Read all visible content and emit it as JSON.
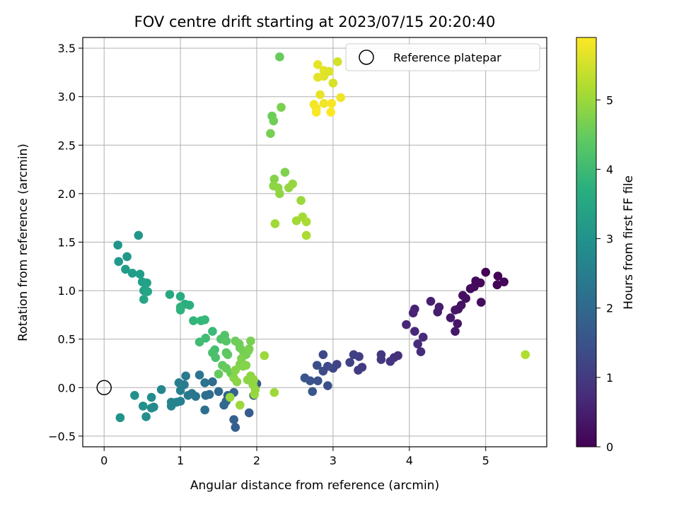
{
  "chart_data": {
    "type": "scatter",
    "title": "FOV centre drift starting at 2023/07/15 20:20:40",
    "xlabel": "Angular distance from reference (arcmin)",
    "ylabel": "Rotation from reference (arcmin)",
    "xlim": [
      -0.28,
      5.8
    ],
    "ylim": [
      -0.61,
      3.61
    ],
    "xticks": [
      "0",
      "1",
      "2",
      "3",
      "4",
      "5"
    ],
    "yticks": [
      "−0.5",
      "0.0",
      "0.5",
      "1.0",
      "1.5",
      "2.0",
      "2.5",
      "3.0",
      "3.5"
    ],
    "grid": true,
    "legend": {
      "position": "top-right",
      "label": "Reference platepar",
      "marker": "open-circle"
    },
    "reference_point": {
      "x": 0,
      "y": 0
    },
    "colorbar": {
      "label": "Hours from first FF file",
      "colormap": "viridis",
      "range": [
        0,
        5.9
      ],
      "ticks": [
        "0",
        "1",
        "2",
        "3",
        "4",
        "5"
      ]
    },
    "point_color_value": "hours",
    "points": [
      {
        "x": 5.0,
        "y": 1.19,
        "c": 0.0
      },
      {
        "x": 5.16,
        "y": 1.15,
        "c": 0.03
      },
      {
        "x": 5.24,
        "y": 1.09,
        "c": 0.05
      },
      {
        "x": 5.15,
        "y": 1.06,
        "c": 0.07
      },
      {
        "x": 4.93,
        "y": 1.08,
        "c": 0.1
      },
      {
        "x": 4.87,
        "y": 1.1,
        "c": 0.12
      },
      {
        "x": 4.85,
        "y": 1.04,
        "c": 0.15
      },
      {
        "x": 4.8,
        "y": 1.02,
        "c": 0.17
      },
      {
        "x": 4.94,
        "y": 0.88,
        "c": 0.2
      },
      {
        "x": 4.74,
        "y": 0.92,
        "c": 0.22
      },
      {
        "x": 4.7,
        "y": 0.95,
        "c": 0.25
      },
      {
        "x": 4.68,
        "y": 0.85,
        "c": 0.28
      },
      {
        "x": 4.64,
        "y": 0.81,
        "c": 0.3
      },
      {
        "x": 4.6,
        "y": 0.8,
        "c": 0.33
      },
      {
        "x": 4.63,
        "y": 0.66,
        "c": 0.35
      },
      {
        "x": 4.6,
        "y": 0.58,
        "c": 0.38
      },
      {
        "x": 4.54,
        "y": 0.72,
        "c": 0.4
      },
      {
        "x": 4.39,
        "y": 0.83,
        "c": 0.45
      },
      {
        "x": 4.37,
        "y": 0.78,
        "c": 0.48
      },
      {
        "x": 4.28,
        "y": 0.89,
        "c": 0.52
      },
      {
        "x": 4.07,
        "y": 0.81,
        "c": 0.55
      },
      {
        "x": 4.05,
        "y": 0.77,
        "c": 0.58
      },
      {
        "x": 3.96,
        "y": 0.65,
        "c": 0.62
      },
      {
        "x": 4.07,
        "y": 0.58,
        "c": 0.65
      },
      {
        "x": 4.18,
        "y": 0.52,
        "c": 0.7
      },
      {
        "x": 4.11,
        "y": 0.45,
        "c": 0.73
      },
      {
        "x": 4.15,
        "y": 0.37,
        "c": 0.76
      },
      {
        "x": 3.85,
        "y": 0.33,
        "c": 0.8
      },
      {
        "x": 3.8,
        "y": 0.31,
        "c": 0.84
      },
      {
        "x": 3.75,
        "y": 0.27,
        "c": 0.88
      },
      {
        "x": 3.63,
        "y": 0.34,
        "c": 0.92
      },
      {
        "x": 3.63,
        "y": 0.29,
        "c": 0.96
      },
      {
        "x": 3.38,
        "y": 0.21,
        "c": 1.0
      },
      {
        "x": 3.33,
        "y": 0.18,
        "c": 1.04
      },
      {
        "x": 3.34,
        "y": 0.32,
        "c": 1.08
      },
      {
        "x": 3.27,
        "y": 0.34,
        "c": 1.12
      },
      {
        "x": 3.22,
        "y": 0.26,
        "c": 1.16
      },
      {
        "x": 3.05,
        "y": 0.24,
        "c": 1.2
      },
      {
        "x": 3.0,
        "y": 0.2,
        "c": 1.24
      },
      {
        "x": 2.87,
        "y": 0.34,
        "c": 1.28
      },
      {
        "x": 2.93,
        "y": 0.22,
        "c": 1.32
      },
      {
        "x": 2.87,
        "y": 0.17,
        "c": 1.36
      },
      {
        "x": 2.79,
        "y": 0.23,
        "c": 1.4
      },
      {
        "x": 2.93,
        "y": 0.02,
        "c": 1.44
      },
      {
        "x": 2.8,
        "y": 0.07,
        "c": 1.48
      },
      {
        "x": 2.7,
        "y": 0.07,
        "c": 1.52
      },
      {
        "x": 2.63,
        "y": 0.1,
        "c": 1.56
      },
      {
        "x": 2.73,
        "y": -0.04,
        "c": 1.6
      },
      {
        "x": 2.0,
        "y": 0.04,
        "c": 1.66
      },
      {
        "x": 1.96,
        "y": -0.08,
        "c": 1.7
      },
      {
        "x": 1.9,
        "y": -0.26,
        "c": 1.74
      },
      {
        "x": 1.72,
        "y": -0.41,
        "c": 1.78
      },
      {
        "x": 1.7,
        "y": -0.33,
        "c": 1.82
      },
      {
        "x": 1.7,
        "y": -0.05,
        "c": 1.86
      },
      {
        "x": 1.62,
        "y": -0.08,
        "c": 1.9
      },
      {
        "x": 1.6,
        "y": -0.14,
        "c": 1.94
      },
      {
        "x": 1.57,
        "y": -0.18,
        "c": 1.98
      },
      {
        "x": 1.5,
        "y": -0.04,
        "c": 2.02
      },
      {
        "x": 1.42,
        "y": 0.06,
        "c": 2.06
      },
      {
        "x": 1.38,
        "y": -0.07,
        "c": 2.1
      },
      {
        "x": 1.33,
        "y": -0.08,
        "c": 2.14
      },
      {
        "x": 1.32,
        "y": -0.23,
        "c": 2.18
      },
      {
        "x": 1.32,
        "y": 0.05,
        "c": 2.22
      },
      {
        "x": 1.25,
        "y": 0.13,
        "c": 2.26
      },
      {
        "x": 1.2,
        "y": -0.09,
        "c": 2.3
      },
      {
        "x": 1.15,
        "y": -0.06,
        "c": 2.34
      },
      {
        "x": 1.1,
        "y": -0.08,
        "c": 2.38
      },
      {
        "x": 1.07,
        "y": 0.12,
        "c": 2.42
      },
      {
        "x": 1.05,
        "y": 0.03,
        "c": 2.46
      },
      {
        "x": 0.98,
        "y": 0.05,
        "c": 2.5
      },
      {
        "x": 1.0,
        "y": -0.03,
        "c": 2.54
      },
      {
        "x": 1.0,
        "y": -0.14,
        "c": 2.58
      },
      {
        "x": 0.95,
        "y": -0.15,
        "c": 2.62
      },
      {
        "x": 0.88,
        "y": -0.19,
        "c": 2.66
      },
      {
        "x": 0.88,
        "y": -0.15,
        "c": 2.7
      },
      {
        "x": 0.75,
        "y": -0.02,
        "c": 2.74
      },
      {
        "x": 0.65,
        "y": -0.2,
        "c": 2.78
      },
      {
        "x": 0.62,
        "y": -0.21,
        "c": 2.82
      },
      {
        "x": 0.62,
        "y": -0.1,
        "c": 2.86
      },
      {
        "x": 0.55,
        "y": -0.3,
        "c": 2.9
      },
      {
        "x": 0.51,
        "y": -0.19,
        "c": 2.94
      },
      {
        "x": 0.4,
        "y": -0.08,
        "c": 2.98
      },
      {
        "x": 0.21,
        "y": -0.31,
        "c": 3.02
      },
      {
        "x": 0.18,
        "y": 1.47,
        "c": 3.06
      },
      {
        "x": 0.45,
        "y": 1.57,
        "c": 3.1
      },
      {
        "x": 0.3,
        "y": 1.35,
        "c": 3.14
      },
      {
        "x": 0.19,
        "y": 1.3,
        "c": 3.18
      },
      {
        "x": 0.28,
        "y": 1.22,
        "c": 3.22
      },
      {
        "x": 0.37,
        "y": 1.18,
        "c": 3.26
      },
      {
        "x": 0.47,
        "y": 1.17,
        "c": 3.3
      },
      {
        "x": 0.5,
        "y": 1.09,
        "c": 3.34
      },
      {
        "x": 0.56,
        "y": 1.08,
        "c": 3.38
      },
      {
        "x": 0.52,
        "y": 1.0,
        "c": 3.42
      },
      {
        "x": 0.57,
        "y": 0.99,
        "c": 3.46
      },
      {
        "x": 0.52,
        "y": 0.91,
        "c": 3.5
      },
      {
        "x": 0.86,
        "y": 0.96,
        "c": 3.55
      },
      {
        "x": 1.0,
        "y": 0.94,
        "c": 3.6
      },
      {
        "x": 1.06,
        "y": 0.86,
        "c": 3.65
      },
      {
        "x": 1.12,
        "y": 0.85,
        "c": 3.7
      },
      {
        "x": 1.0,
        "y": 0.83,
        "c": 3.75
      },
      {
        "x": 1.0,
        "y": 0.8,
        "c": 3.8
      },
      {
        "x": 1.17,
        "y": 0.69,
        "c": 3.85
      },
      {
        "x": 1.27,
        "y": 0.69,
        "c": 3.9
      },
      {
        "x": 1.32,
        "y": 0.7,
        "c": 3.95
      },
      {
        "x": 1.42,
        "y": 0.58,
        "c": 4.0
      },
      {
        "x": 1.33,
        "y": 0.51,
        "c": 4.04
      },
      {
        "x": 1.25,
        "y": 0.47,
        "c": 4.08
      },
      {
        "x": 1.45,
        "y": 0.39,
        "c": 4.12
      },
      {
        "x": 1.42,
        "y": 0.36,
        "c": 4.16
      },
      {
        "x": 1.46,
        "y": 0.31,
        "c": 4.2
      },
      {
        "x": 1.53,
        "y": 0.5,
        "c": 4.24
      },
      {
        "x": 1.58,
        "y": 0.54,
        "c": 4.28
      },
      {
        "x": 1.6,
        "y": 0.48,
        "c": 4.32
      },
      {
        "x": 1.6,
        "y": 0.36,
        "c": 4.36
      },
      {
        "x": 1.62,
        "y": 0.34,
        "c": 4.4
      },
      {
        "x": 1.55,
        "y": 0.23,
        "c": 4.44
      },
      {
        "x": 1.5,
        "y": 0.14,
        "c": 4.48
      },
      {
        "x": 1.6,
        "y": 0.2,
        "c": 4.5
      },
      {
        "x": 1.66,
        "y": 0.15,
        "c": 4.52
      },
      {
        "x": 1.72,
        "y": 0.48,
        "c": 4.55
      },
      {
        "x": 1.77,
        "y": 0.45,
        "c": 4.58
      },
      {
        "x": 1.78,
        "y": 0.41,
        "c": 4.6
      },
      {
        "x": 1.82,
        "y": 0.38,
        "c": 4.62
      },
      {
        "x": 1.86,
        "y": 0.34,
        "c": 4.64
      },
      {
        "x": 1.89,
        "y": 0.38,
        "c": 4.66
      },
      {
        "x": 1.92,
        "y": 0.48,
        "c": 4.68
      },
      {
        "x": 1.9,
        "y": 0.4,
        "c": 4.7
      },
      {
        "x": 1.8,
        "y": 0.3,
        "c": 4.72
      },
      {
        "x": 1.78,
        "y": 0.24,
        "c": 4.74
      },
      {
        "x": 1.82,
        "y": 0.22,
        "c": 4.76
      },
      {
        "x": 1.86,
        "y": 0.23,
        "c": 4.78
      },
      {
        "x": 1.72,
        "y": 0.18,
        "c": 4.8
      },
      {
        "x": 1.7,
        "y": 0.1,
        "c": 4.82
      },
      {
        "x": 1.74,
        "y": 0.06,
        "c": 4.84
      },
      {
        "x": 1.88,
        "y": 0.08,
        "c": 4.86
      },
      {
        "x": 1.92,
        "y": 0.12,
        "c": 4.88
      },
      {
        "x": 1.96,
        "y": 0.08,
        "c": 4.9
      },
      {
        "x": 1.95,
        "y": 0.03,
        "c": 4.92
      },
      {
        "x": 1.98,
        "y": -0.02,
        "c": 4.94
      },
      {
        "x": 1.97,
        "y": -0.07,
        "c": 4.96
      },
      {
        "x": 1.65,
        "y": -0.1,
        "c": 4.98
      },
      {
        "x": 1.78,
        "y": -0.18,
        "c": 5.0
      },
      {
        "x": 2.1,
        "y": 0.33,
        "c": 5.02
      },
      {
        "x": 2.23,
        "y": -0.05,
        "c": 5.04
      },
      {
        "x": 2.2,
        "y": 2.8,
        "c": 4.55
      },
      {
        "x": 2.22,
        "y": 2.75,
        "c": 4.6
      },
      {
        "x": 2.18,
        "y": 2.62,
        "c": 4.65
      },
      {
        "x": 2.32,
        "y": 2.89,
        "c": 4.7
      },
      {
        "x": 2.3,
        "y": 3.41,
        "c": 4.5
      },
      {
        "x": 2.37,
        "y": 2.22,
        "c": 4.75
      },
      {
        "x": 2.23,
        "y": 2.15,
        "c": 4.8
      },
      {
        "x": 2.22,
        "y": 2.08,
        "c": 4.85
      },
      {
        "x": 2.28,
        "y": 2.06,
        "c": 4.88
      },
      {
        "x": 2.3,
        "y": 2.0,
        "c": 4.9
      },
      {
        "x": 2.42,
        "y": 2.06,
        "c": 4.93
      },
      {
        "x": 2.47,
        "y": 2.1,
        "c": 4.96
      },
      {
        "x": 2.58,
        "y": 1.93,
        "c": 5.0
      },
      {
        "x": 2.24,
        "y": 1.69,
        "c": 5.05
      },
      {
        "x": 2.52,
        "y": 1.72,
        "c": 5.08
      },
      {
        "x": 2.6,
        "y": 1.76,
        "c": 5.1
      },
      {
        "x": 2.65,
        "y": 1.71,
        "c": 5.12
      },
      {
        "x": 2.65,
        "y": 1.57,
        "c": 5.15
      },
      {
        "x": 5.52,
        "y": 0.34,
        "c": 5.2
      },
      {
        "x": 2.8,
        "y": 3.33,
        "c": 5.7
      },
      {
        "x": 2.88,
        "y": 3.27,
        "c": 5.65
      },
      {
        "x": 2.95,
        "y": 3.26,
        "c": 5.6
      },
      {
        "x": 2.88,
        "y": 3.21,
        "c": 5.62
      },
      {
        "x": 2.8,
        "y": 3.2,
        "c": 5.66
      },
      {
        "x": 3.06,
        "y": 3.36,
        "c": 5.5
      },
      {
        "x": 3.0,
        "y": 3.14,
        "c": 5.55
      },
      {
        "x": 2.83,
        "y": 3.02,
        "c": 5.7
      },
      {
        "x": 3.1,
        "y": 2.99,
        "c": 5.75
      },
      {
        "x": 2.88,
        "y": 2.93,
        "c": 5.78
      },
      {
        "x": 2.75,
        "y": 2.92,
        "c": 5.8
      },
      {
        "x": 2.78,
        "y": 2.88,
        "c": 5.82
      },
      {
        "x": 2.98,
        "y": 2.93,
        "c": 5.85
      },
      {
        "x": 2.78,
        "y": 2.84,
        "c": 5.87
      },
      {
        "x": 2.97,
        "y": 2.84,
        "c": 5.9
      }
    ]
  }
}
